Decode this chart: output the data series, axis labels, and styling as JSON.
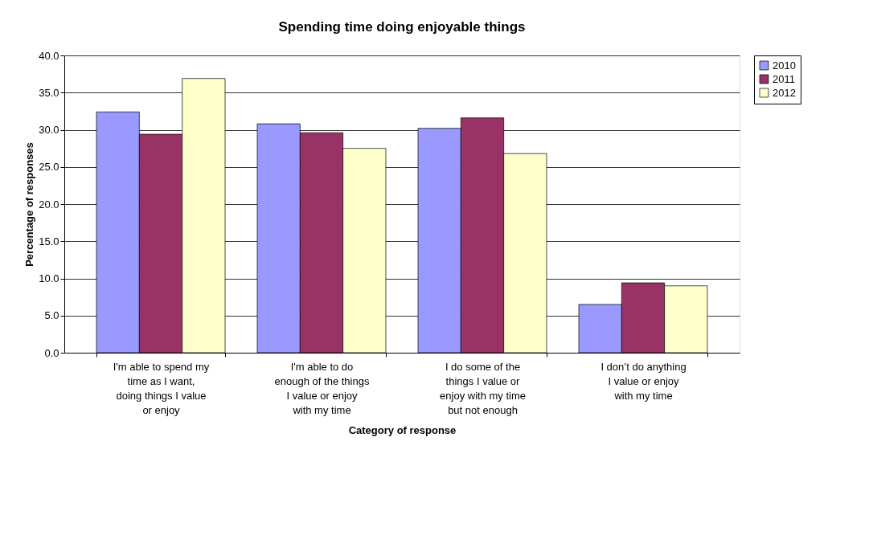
{
  "chart_data": {
    "type": "bar",
    "title": "Spending time doing enjoyable things",
    "xlabel": "Category of response",
    "ylabel": "Percentage of responses",
    "categories": [
      "I'm able to spend my time as I want, doing things I value or enjoy",
      "I'm able to do enough of the things I value or enjoy with my time",
      "I do some of the things I value or enjoy with my time but not enough",
      "I don’t do anything I value or enjoy with my time"
    ],
    "series": [
      {
        "name": "2010",
        "color": "#9999ff",
        "values": [
          32.4,
          30.8,
          30.2,
          6.5
        ]
      },
      {
        "name": "2011",
        "color": "#993366",
        "values": [
          29.4,
          29.6,
          31.6,
          9.4
        ]
      },
      {
        "name": "2012",
        "color": "#ffffcc",
        "values": [
          36.9,
          27.5,
          26.8,
          9.0
        ]
      }
    ],
    "ylim": [
      0,
      40
    ],
    "yticks": [
      {
        "value": 0,
        "label": "0.0"
      },
      {
        "value": 5,
        "label": "5.0"
      },
      {
        "value": 10,
        "label": "10.0"
      },
      {
        "value": 15,
        "label": "15.0"
      },
      {
        "value": 20,
        "label": "20.0"
      },
      {
        "value": 25,
        "label": "25.0"
      },
      {
        "value": 30,
        "label": "30.0"
      },
      {
        "value": 35,
        "label": "35.0"
      },
      {
        "value": 40,
        "label": "40.0"
      }
    ],
    "grid": "y",
    "legend": "right"
  }
}
